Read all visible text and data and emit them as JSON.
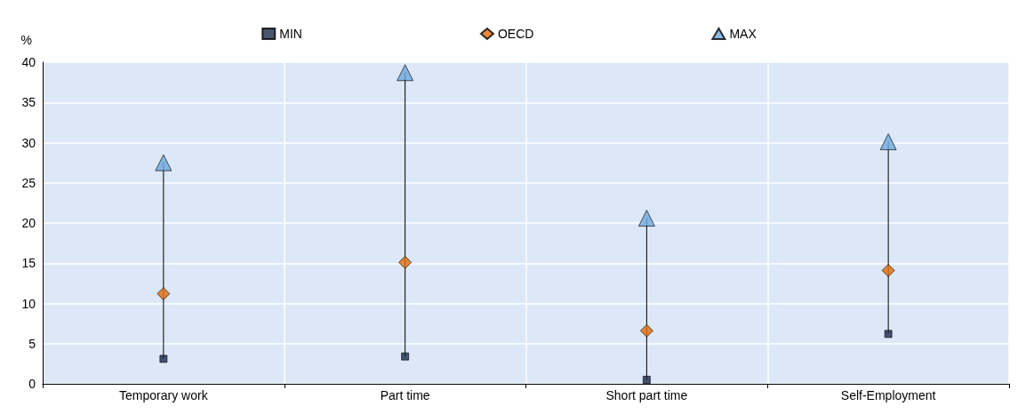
{
  "chart_data": {
    "type": "scatter",
    "ylabel": "%",
    "categories": [
      "Temporary work",
      "Part time",
      "Short part time",
      "Self-Employment"
    ],
    "series": [
      {
        "name": "MIN",
        "color": "#1c2b4a",
        "marker": "square",
        "values": [
          3.1,
          3.4,
          0.5,
          6.2
        ]
      },
      {
        "name": "OECD",
        "color": "#e36c0a",
        "marker": "diamond",
        "values": [
          11.2,
          15.1,
          6.6,
          14.1
        ]
      },
      {
        "name": "MAX",
        "color": "#6fa8dc",
        "marker": "triangle",
        "values": [
          27.5,
          38.7,
          20.6,
          30.1
        ]
      }
    ],
    "ylim": [
      0,
      40
    ],
    "yticks": [
      0,
      5,
      10,
      15,
      20,
      25,
      30,
      35,
      40
    ],
    "grid": true,
    "legend": "top"
  }
}
